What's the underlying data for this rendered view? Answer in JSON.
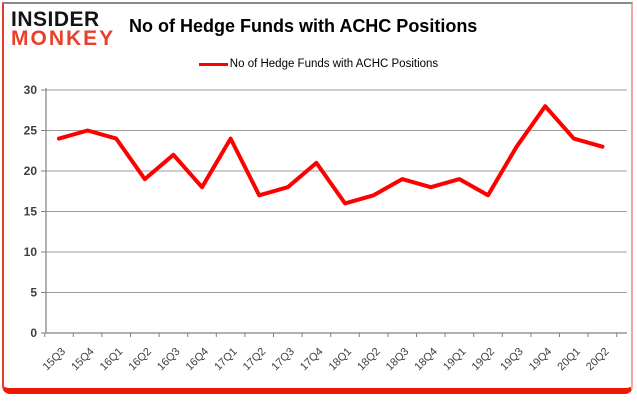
{
  "logo": {
    "line1": "INSIDER",
    "line2": "MONKEY"
  },
  "header": {
    "title": "No of Hedge Funds with ACHC Positions"
  },
  "legend": {
    "label": "No of Hedge Funds with ACHC Positions",
    "line_color": "#ff0000"
  },
  "colors": {
    "series_red": "#ff0000",
    "logo_red": "#e8402c",
    "frame_bottom_red": "#ee1702",
    "frame_left_red": "#e43b2a",
    "frame_right_pink": "#f2a8a0",
    "frame_top_gray": "#8a8a8a",
    "gridline_gray": "#9d9d9d",
    "axis_gray": "#808080"
  },
  "chart_data": {
    "type": "line",
    "title": "No of Hedge Funds with ACHC Positions",
    "categories": [
      "15Q3",
      "15Q4",
      "16Q1",
      "16Q2",
      "16Q3",
      "16Q4",
      "17Q1",
      "17Q2",
      "17Q3",
      "17Q4",
      "18Q1",
      "18Q2",
      "18Q3",
      "18Q4",
      "19Q1",
      "19Q2",
      "19Q3",
      "19Q4",
      "20Q1",
      "20Q2"
    ],
    "series": [
      {
        "name": "No of Hedge Funds with ACHC Positions",
        "color": "#ff0000",
        "values": [
          24,
          25,
          24,
          19,
          22,
          18,
          24,
          17,
          18,
          21,
          16,
          17,
          19,
          18,
          19,
          17,
          23,
          28,
          24,
          23
        ]
      }
    ],
    "xlabel": "",
    "ylabel": "",
    "ylim": [
      0,
      30
    ],
    "yticks": [
      0,
      5,
      10,
      15,
      20,
      25,
      30
    ],
    "grid": true,
    "legend_position": "top-center"
  }
}
